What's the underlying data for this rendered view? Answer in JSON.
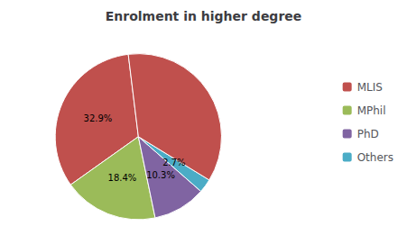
{
  "chart_data": {
    "type": "pie",
    "title": "Enrolment in higher degree",
    "categories": [
      "MLIS",
      "MPhil",
      "PhD",
      "Others",
      null
    ],
    "values": [
      32.9,
      18.4,
      10.3,
      2.7,
      35.7
    ],
    "value_labels": [
      "32.9%",
      "18.4%",
      "10.3%",
      "2.7%",
      null
    ],
    "data_labels": true,
    "colors": [
      "#c0504d",
      "#9bbb59",
      "#8064a2",
      "#4bacc6",
      "#c0504d"
    ],
    "legend": "right"
  }
}
